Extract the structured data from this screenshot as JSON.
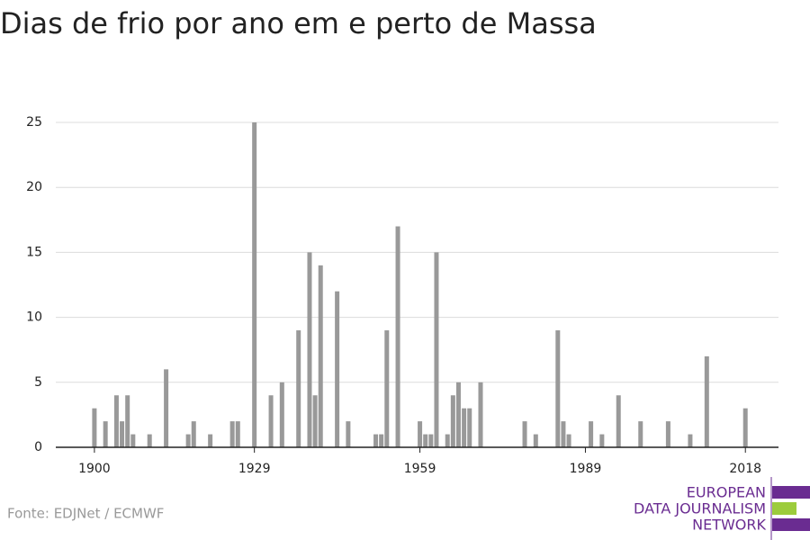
{
  "chart_data": {
    "type": "bar",
    "title": "Dias de frio por ano em e perto de Massa",
    "x": [
      1900,
      1902,
      1904,
      1905,
      1906,
      1907,
      1910,
      1913,
      1917,
      1918,
      1921,
      1925,
      1926,
      1929,
      1932,
      1934,
      1937,
      1939,
      1940,
      1941,
      1944,
      1946,
      1951,
      1952,
      1953,
      1955,
      1959,
      1960,
      1961,
      1962,
      1964,
      1965,
      1966,
      1967,
      1968,
      1970,
      1978,
      1980,
      1984,
      1985,
      1986,
      1990,
      1992,
      1995,
      1999,
      2004,
      2008,
      2011,
      2018
    ],
    "values": [
      3,
      2,
      4,
      2,
      4,
      1,
      1,
      6,
      1,
      2,
      1,
      2,
      2,
      25,
      4,
      5,
      9,
      15,
      4,
      14,
      12,
      2,
      1,
      1,
      9,
      17,
      2,
      1,
      1,
      15,
      1,
      4,
      5,
      3,
      3,
      5,
      2,
      1,
      9,
      2,
      1,
      2,
      1,
      4,
      2,
      2,
      1,
      7,
      3
    ],
    "color": "#999999",
    "xlim": [
      1893,
      2024
    ],
    "xticks": [
      1900,
      1929,
      1959,
      1989,
      2018
    ],
    "ylim": [
      0,
      25
    ],
    "yticks": [
      0,
      5,
      10,
      15,
      20,
      25
    ],
    "grid": true,
    "source": "Fonte: EDJNet / ECMWF"
  },
  "logo": {
    "lines": [
      "EUROPEAN",
      "DATA JOURNALISM",
      "NETWORK"
    ]
  }
}
